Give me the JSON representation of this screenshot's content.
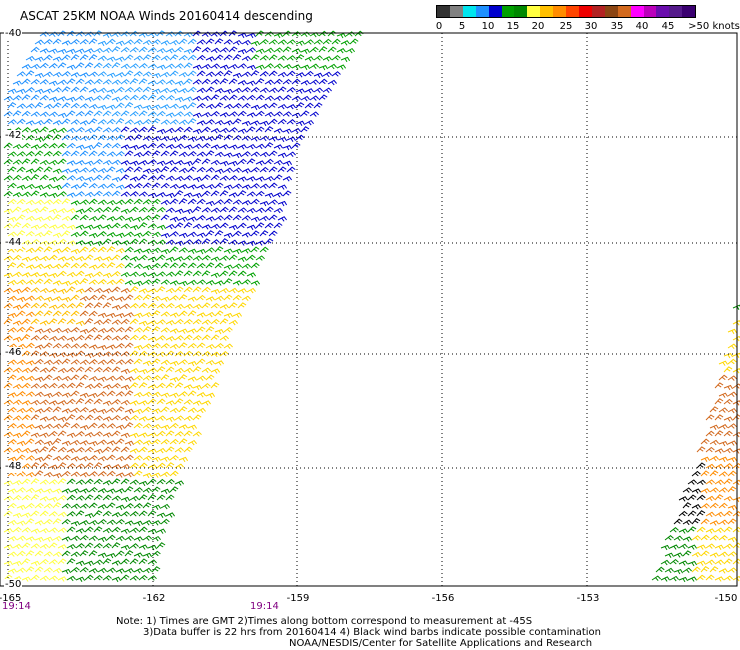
{
  "title": "ASCAT 25KM NOAA Winds 20160414 descending",
  "colorbar": {
    "colors": [
      "#333333",
      "#808080",
      "#00e5ee",
      "#1e90ff",
      "#0000cd",
      "#00a000",
      "#008800",
      "#ffff40",
      "#ffc000",
      "#ff8c00",
      "#ff4500",
      "#ee0000",
      "#b22222",
      "#8b4513",
      "#d2691e",
      "#ff00ff",
      "#bb00bb",
      "#6a0dad",
      "#551a8b",
      "#3a0070"
    ],
    "labels": [
      "0",
      "5",
      "10",
      "15",
      "20",
      "25",
      "30",
      "35",
      "40",
      "45",
      ">50 knots"
    ]
  },
  "map": {
    "lat_labels": [
      "-40",
      "-42",
      "-44",
      "-46",
      "-48",
      "-50"
    ],
    "lon_labels": [
      "-165",
      "-162",
      "-159",
      "-156",
      "-153",
      "-150"
    ],
    "time_labels": [
      "19:14",
      "19:14"
    ],
    "lat_range": [
      -50,
      -40
    ],
    "lon_range": [
      -165,
      -150
    ],
    "grid": true
  },
  "notes": [
    "Note: 1) Times are GMT 2)Times along bottom correspond to measurement at -45S",
    "3)Data buffer is 22 hrs from 20160414 4) Black wind barbs indicate possible contamination",
    "NOAA/NESDIS/Center for Satellite Applications and Research"
  ]
}
